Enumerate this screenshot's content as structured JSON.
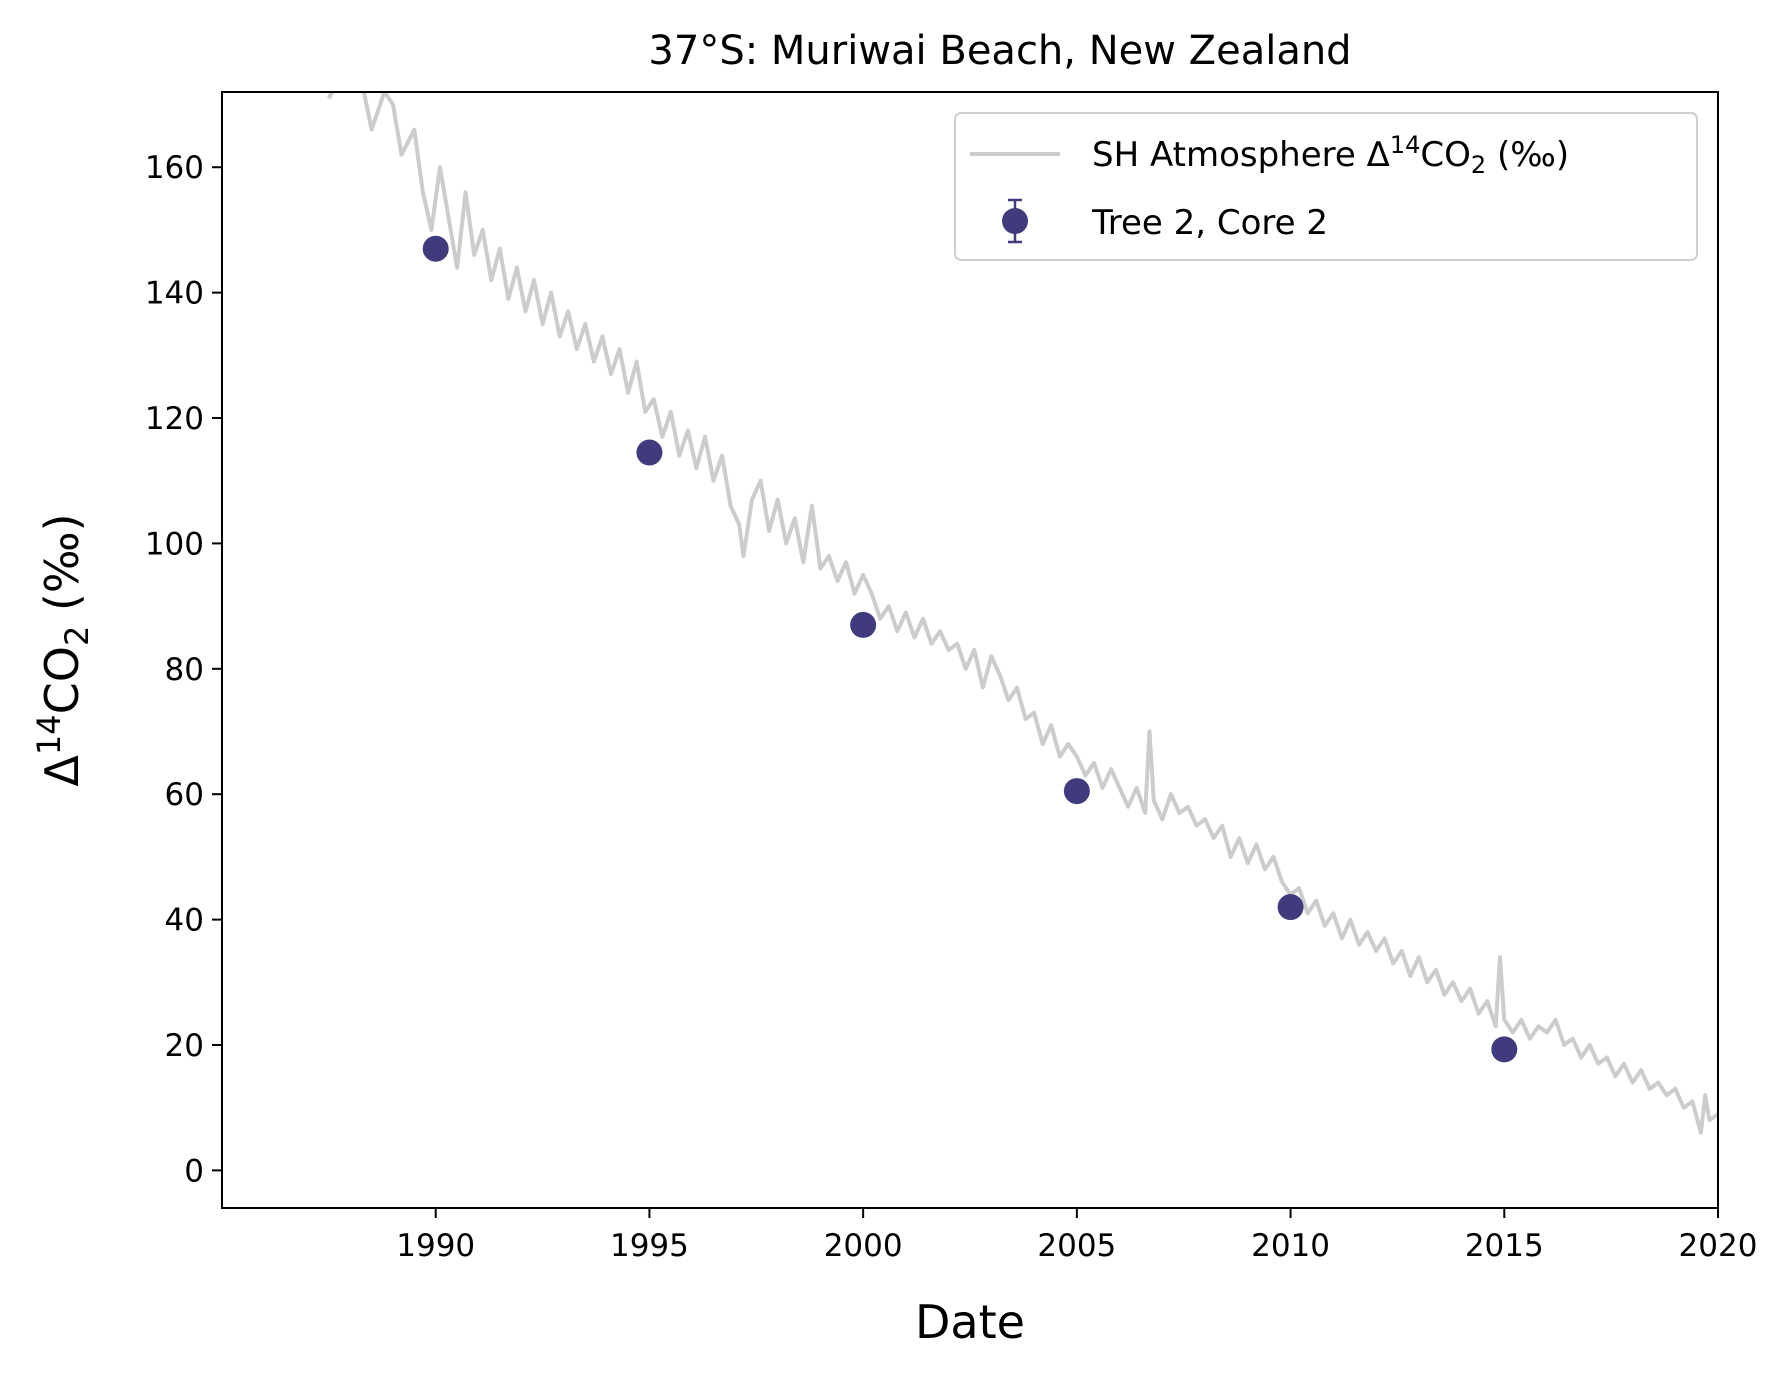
{
  "chart_data": {
    "type": "line",
    "title": "37°S: Muriwai Beach, New Zealand",
    "xlabel": "Date",
    "ylabel": {
      "delta": "Δ",
      "sup": "14",
      "base": "CO",
      "sub": "2",
      "unit": " (‰)"
    },
    "xlim": [
      1985.0,
      2020.0
    ],
    "ylim": [
      -6,
      172
    ],
    "xticks": [
      1990,
      1995,
      2000,
      2005,
      2010,
      2015,
      2020
    ],
    "yticks": [
      0,
      20,
      40,
      60,
      80,
      100,
      120,
      140,
      160
    ],
    "legend_position": "top-right",
    "grid": false,
    "series": [
      {
        "name": "SH Atmosphere Δ14CO2 (‰)",
        "legend_label": {
          "pre": "SH Atmosphere Δ",
          "sup": "14",
          "mid": "CO",
          "sub": "2",
          "post": " (‰)"
        },
        "kind": "line",
        "color": "#cccccc",
        "points": [
          [
            1987.5,
            171
          ],
          [
            1987.8,
            175
          ],
          [
            1988.2,
            176
          ],
          [
            1988.5,
            166
          ],
          [
            1988.8,
            172
          ],
          [
            1989.0,
            170
          ],
          [
            1989.2,
            162
          ],
          [
            1989.5,
            166
          ],
          [
            1989.7,
            156
          ],
          [
            1989.9,
            150
          ],
          [
            1990.1,
            160
          ],
          [
            1990.3,
            152
          ],
          [
            1990.5,
            144
          ],
          [
            1990.7,
            156
          ],
          [
            1990.9,
            146
          ],
          [
            1991.1,
            150
          ],
          [
            1991.3,
            142
          ],
          [
            1991.5,
            147
          ],
          [
            1991.7,
            139
          ],
          [
            1991.9,
            144
          ],
          [
            1992.1,
            137
          ],
          [
            1992.3,
            142
          ],
          [
            1992.5,
            135
          ],
          [
            1992.7,
            140
          ],
          [
            1992.9,
            133
          ],
          [
            1993.1,
            137
          ],
          [
            1993.3,
            131
          ],
          [
            1993.5,
            135
          ],
          [
            1993.7,
            129
          ],
          [
            1993.9,
            133
          ],
          [
            1994.1,
            127
          ],
          [
            1994.3,
            131
          ],
          [
            1994.5,
            124
          ],
          [
            1994.7,
            129
          ],
          [
            1994.9,
            121
          ],
          [
            1995.1,
            123
          ],
          [
            1995.3,
            117
          ],
          [
            1995.5,
            121
          ],
          [
            1995.7,
            114
          ],
          [
            1995.9,
            118
          ],
          [
            1996.1,
            112
          ],
          [
            1996.3,
            117
          ],
          [
            1996.5,
            110
          ],
          [
            1996.7,
            114
          ],
          [
            1996.9,
            106
          ],
          [
            1997.1,
            103
          ],
          [
            1997.2,
            98
          ],
          [
            1997.4,
            107
          ],
          [
            1997.6,
            110
          ],
          [
            1997.8,
            102
          ],
          [
            1998.0,
            107
          ],
          [
            1998.2,
            100
          ],
          [
            1998.4,
            104
          ],
          [
            1998.6,
            97
          ],
          [
            1998.8,
            106
          ],
          [
            1999.0,
            96
          ],
          [
            1999.2,
            98
          ],
          [
            1999.4,
            94
          ],
          [
            1999.6,
            97
          ],
          [
            1999.8,
            92
          ],
          [
            2000.0,
            95
          ],
          [
            2000.2,
            92
          ],
          [
            2000.4,
            88
          ],
          [
            2000.6,
            90
          ],
          [
            2000.8,
            86
          ],
          [
            2001.0,
            89
          ],
          [
            2001.2,
            85
          ],
          [
            2001.4,
            88
          ],
          [
            2001.6,
            84
          ],
          [
            2001.8,
            86
          ],
          [
            2002.0,
            83
          ],
          [
            2002.2,
            84
          ],
          [
            2002.4,
            80
          ],
          [
            2002.6,
            83
          ],
          [
            2002.8,
            77
          ],
          [
            2003.0,
            82
          ],
          [
            2003.2,
            79
          ],
          [
            2003.4,
            75
          ],
          [
            2003.6,
            77
          ],
          [
            2003.8,
            72
          ],
          [
            2004.0,
            73
          ],
          [
            2004.2,
            68
          ],
          [
            2004.4,
            71
          ],
          [
            2004.6,
            66
          ],
          [
            2004.8,
            68
          ],
          [
            2005.0,
            66
          ],
          [
            2005.2,
            63
          ],
          [
            2005.4,
            65
          ],
          [
            2005.6,
            61
          ],
          [
            2005.8,
            64
          ],
          [
            2006.0,
            61
          ],
          [
            2006.2,
            58
          ],
          [
            2006.4,
            61
          ],
          [
            2006.6,
            57
          ],
          [
            2006.7,
            70
          ],
          [
            2006.8,
            59
          ],
          [
            2007.0,
            56
          ],
          [
            2007.2,
            60
          ],
          [
            2007.4,
            57
          ],
          [
            2007.6,
            58
          ],
          [
            2007.8,
            55
          ],
          [
            2008.0,
            56
          ],
          [
            2008.2,
            53
          ],
          [
            2008.4,
            55
          ],
          [
            2008.6,
            50
          ],
          [
            2008.8,
            53
          ],
          [
            2009.0,
            49
          ],
          [
            2009.2,
            52
          ],
          [
            2009.4,
            48
          ],
          [
            2009.6,
            50
          ],
          [
            2009.8,
            46
          ],
          [
            2010.0,
            44
          ],
          [
            2010.2,
            45
          ],
          [
            2010.4,
            41
          ],
          [
            2010.6,
            43
          ],
          [
            2010.8,
            39
          ],
          [
            2011.0,
            41
          ],
          [
            2011.2,
            37
          ],
          [
            2011.4,
            40
          ],
          [
            2011.6,
            36
          ],
          [
            2011.8,
            38
          ],
          [
            2012.0,
            35
          ],
          [
            2012.2,
            37
          ],
          [
            2012.4,
            33
          ],
          [
            2012.6,
            35
          ],
          [
            2012.8,
            31
          ],
          [
            2013.0,
            34
          ],
          [
            2013.2,
            30
          ],
          [
            2013.4,
            32
          ],
          [
            2013.6,
            28
          ],
          [
            2013.8,
            30
          ],
          [
            2014.0,
            27
          ],
          [
            2014.2,
            29
          ],
          [
            2014.4,
            25
          ],
          [
            2014.6,
            27
          ],
          [
            2014.8,
            23
          ],
          [
            2014.9,
            34
          ],
          [
            2015.0,
            24
          ],
          [
            2015.2,
            22
          ],
          [
            2015.4,
            24
          ],
          [
            2015.6,
            21
          ],
          [
            2015.8,
            23
          ],
          [
            2016.0,
            22
          ],
          [
            2016.2,
            24
          ],
          [
            2016.4,
            20
          ],
          [
            2016.6,
            21
          ],
          [
            2016.8,
            18
          ],
          [
            2017.0,
            20
          ],
          [
            2017.2,
            17
          ],
          [
            2017.4,
            18
          ],
          [
            2017.6,
            15
          ],
          [
            2017.8,
            17
          ],
          [
            2018.0,
            14
          ],
          [
            2018.2,
            16
          ],
          [
            2018.4,
            13
          ],
          [
            2018.6,
            14
          ],
          [
            2018.8,
            12
          ],
          [
            2019.0,
            13
          ],
          [
            2019.2,
            10
          ],
          [
            2019.4,
            11
          ],
          [
            2019.6,
            6
          ],
          [
            2019.7,
            12
          ],
          [
            2019.8,
            8
          ],
          [
            2020.0,
            9
          ]
        ]
      },
      {
        "name": "Tree 2, Core 2",
        "kind": "errorbar",
        "color": "#3f3b7c",
        "x": [
          1990,
          1995,
          2000,
          2005,
          2010,
          2015
        ],
        "y": [
          147,
          114.5,
          87,
          60.5,
          42,
          19.3
        ]
      }
    ]
  }
}
